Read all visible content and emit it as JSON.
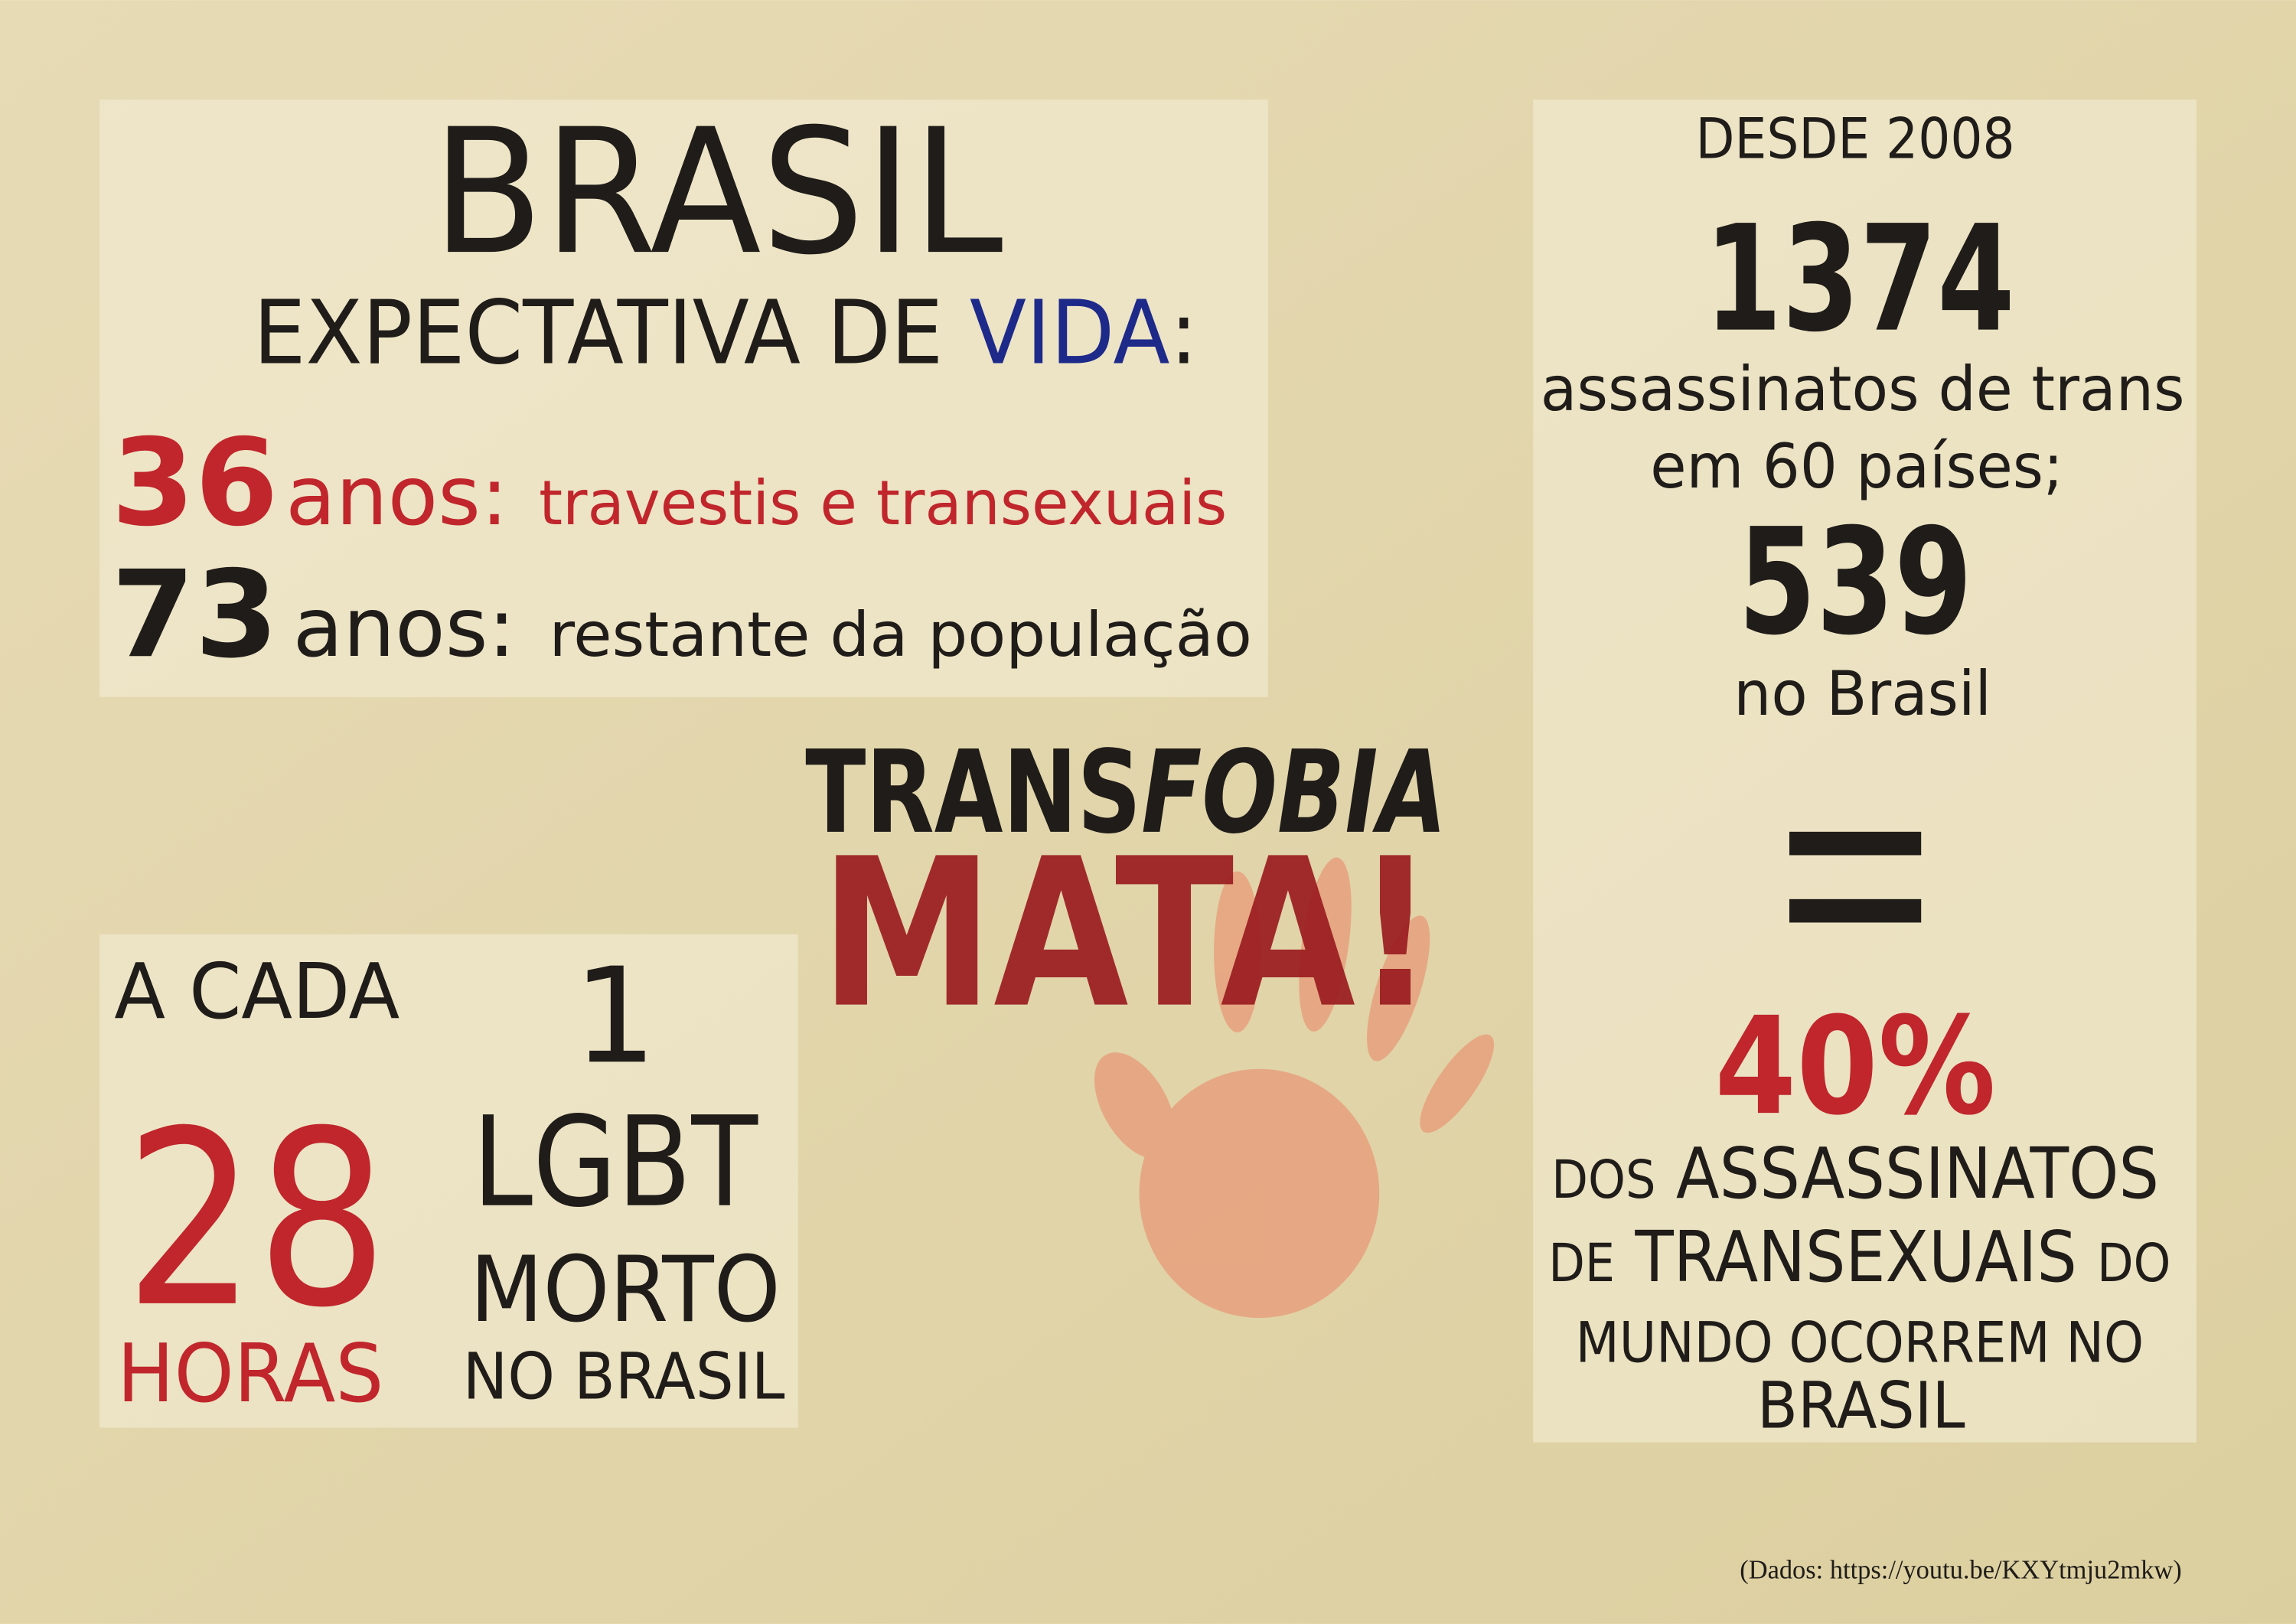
{
  "life_expectancy": {
    "title": "BRASIL",
    "subtitle_start": "EXPECTATIVA DE ",
    "subtitle_highlight": "VIDA",
    "subtitle_end": ":",
    "rows": [
      {
        "number": "36",
        "unit": "anos:",
        "group": "travestis e transexuais"
      },
      {
        "number": "73",
        "unit": "anos:",
        "group": "restante da população"
      }
    ]
  },
  "headline": {
    "line1_start": "TRANS",
    "line1_end": "FOBIA",
    "line2": "MATA!"
  },
  "frequency": {
    "every": "A CADA",
    "hours_number": "28",
    "hours_unit": "HORAS",
    "count": "1",
    "who": "LGBT",
    "state": "MORTO",
    "where": "NO BRASIL"
  },
  "murders": {
    "since": "DESDE 2008",
    "world_total": "1374",
    "world_text_1": "assassinatos de trans",
    "world_text_2": "em 60 países;",
    "brazil_total": "539",
    "brazil_text": "no Brasil",
    "share": "40%",
    "share_text": {
      "line1_small": "DOS",
      "line1_big": "ASSASSINATOS",
      "line2_small": "DE",
      "line2_big": "TRANSEXUAIS",
      "line2_end": "DO",
      "line3": "MUNDO OCORREM NO",
      "line4": "BRASIL"
    }
  },
  "footer": {
    "source": "(Dados: https://youtu.be/KXYtmju2mkw)"
  }
}
